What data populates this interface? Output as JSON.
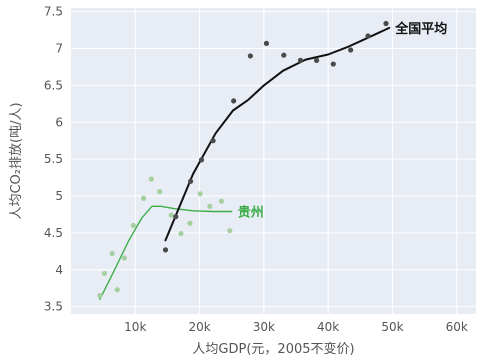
{
  "chart_data": {
    "type": "scatter",
    "xlabel": "人均GDP(元，2005不变价)",
    "ylabel": "人均CO₂排放(吨/人)",
    "xlim": [
      0,
      63000
    ],
    "ylim": [
      3.4,
      7.55
    ],
    "x_ticks": [
      {
        "value": 10000,
        "label": "10k"
      },
      {
        "value": 20000,
        "label": "20k"
      },
      {
        "value": 30000,
        "label": "30k"
      },
      {
        "value": 40000,
        "label": "40k"
      },
      {
        "value": 50000,
        "label": "50k"
      },
      {
        "value": 60000,
        "label": "60k"
      }
    ],
    "y_ticks": [
      {
        "value": 3.5,
        "label": "3.5"
      },
      {
        "value": 4,
        "label": "4"
      },
      {
        "value": 4.5,
        "label": "4.5"
      },
      {
        "value": 5,
        "label": "5"
      },
      {
        "value": 5.5,
        "label": "5.5"
      },
      {
        "value": 6,
        "label": "6"
      },
      {
        "value": 6.5,
        "label": "6.5"
      },
      {
        "value": 7,
        "label": "7"
      },
      {
        "value": 7.5,
        "label": "7.5"
      }
    ],
    "grid": true,
    "plot_background": "#e8ecf5",
    "series": [
      {
        "name": "全国平均",
        "point_color": "#4a4a4a",
        "line_color": "#111111",
        "label_color": "#111111",
        "points": [
          {
            "x": 14700,
            "y": 4.27
          },
          {
            "x": 16300,
            "y": 4.72
          },
          {
            "x": 18600,
            "y": 5.2
          },
          {
            "x": 20300,
            "y": 5.49
          },
          {
            "x": 22100,
            "y": 5.75
          },
          {
            "x": 25300,
            "y": 6.29
          },
          {
            "x": 27900,
            "y": 6.9
          },
          {
            "x": 30400,
            "y": 7.07
          },
          {
            "x": 33100,
            "y": 6.91
          },
          {
            "x": 35700,
            "y": 6.84
          },
          {
            "x": 38200,
            "y": 6.84
          },
          {
            "x": 40800,
            "y": 6.79
          },
          {
            "x": 43500,
            "y": 6.98
          },
          {
            "x": 46200,
            "y": 7.17
          },
          {
            "x": 49000,
            "y": 7.34
          }
        ],
        "trend": [
          {
            "x": 14700,
            "y": 4.4
          },
          {
            "x": 19000,
            "y": 5.3
          },
          {
            "x": 22500,
            "y": 5.85
          },
          {
            "x": 25200,
            "y": 6.16
          },
          {
            "x": 27500,
            "y": 6.3
          },
          {
            "x": 30000,
            "y": 6.5
          },
          {
            "x": 33000,
            "y": 6.7
          },
          {
            "x": 36500,
            "y": 6.85
          },
          {
            "x": 40000,
            "y": 6.92
          },
          {
            "x": 43000,
            "y": 7.02
          },
          {
            "x": 46500,
            "y": 7.16
          },
          {
            "x": 49500,
            "y": 7.28
          }
        ]
      },
      {
        "name": "贵州",
        "point_color": "#a6cfa0",
        "line_color": "#3fae4a",
        "label_color": "#3fae4a",
        "points": [
          {
            "x": 4500,
            "y": 3.65
          },
          {
            "x": 5200,
            "y": 3.95
          },
          {
            "x": 6400,
            "y": 4.22
          },
          {
            "x": 7200,
            "y": 3.73
          },
          {
            "x": 8300,
            "y": 4.16
          },
          {
            "x": 9700,
            "y": 4.6
          },
          {
            "x": 11300,
            "y": 4.97
          },
          {
            "x": 12500,
            "y": 5.23
          },
          {
            "x": 13800,
            "y": 5.06
          },
          {
            "x": 15600,
            "y": 4.74
          },
          {
            "x": 17100,
            "y": 4.49
          },
          {
            "x": 18500,
            "y": 4.63
          },
          {
            "x": 20100,
            "y": 5.03
          },
          {
            "x": 21600,
            "y": 4.86
          },
          {
            "x": 23400,
            "y": 4.93
          },
          {
            "x": 24700,
            "y": 4.53
          }
        ],
        "trend": [
          {
            "x": 4500,
            "y": 3.6
          },
          {
            "x": 6500,
            "y": 3.95
          },
          {
            "x": 9000,
            "y": 4.4
          },
          {
            "x": 11000,
            "y": 4.7
          },
          {
            "x": 12600,
            "y": 4.86
          },
          {
            "x": 14000,
            "y": 4.86
          },
          {
            "x": 16000,
            "y": 4.83
          },
          {
            "x": 19000,
            "y": 4.8
          },
          {
            "x": 22000,
            "y": 4.79
          },
          {
            "x": 25000,
            "y": 4.79
          }
        ]
      }
    ]
  }
}
